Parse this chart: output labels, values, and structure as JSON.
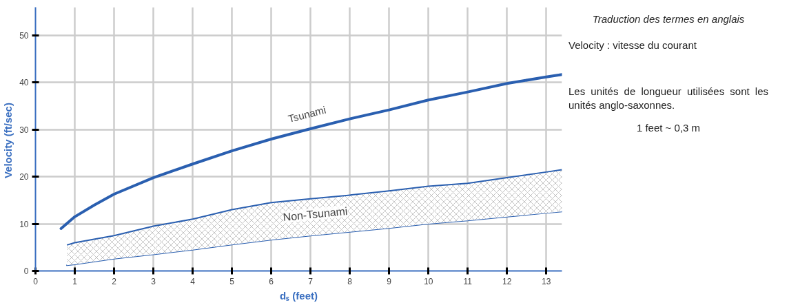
{
  "chart_data": {
    "type": "line",
    "xlabel": "dₛ (feet)",
    "ylabel": "Velocity  (ft/sec)",
    "xlim": [
      0,
      13.4
    ],
    "ylim": [
      0,
      56
    ],
    "xticks": [
      0,
      1,
      2,
      3,
      4,
      5,
      6,
      7,
      8,
      9,
      10,
      11,
      12,
      13
    ],
    "yticks": [
      0,
      10,
      20,
      30,
      40,
      50
    ],
    "grid": true,
    "series": [
      {
        "name": "Tsunami",
        "color": "#2a5fb0",
        "x": [
          0.65,
          1,
          1.5,
          2,
          3,
          4,
          5,
          6,
          7,
          8,
          9,
          10,
          11,
          12,
          13,
          13.4
        ],
        "values": [
          9,
          11.5,
          14,
          16.3,
          19.8,
          22.7,
          25.5,
          28,
          30.2,
          32.3,
          34.2,
          36.3,
          38,
          39.8,
          41.2,
          41.7
        ]
      },
      {
        "type": "line",
        "color": "#2a5fb0",
        "x": [
          0.8,
          1,
          2,
          3,
          4,
          5,
          6,
          7,
          8,
          9,
          10,
          11,
          12,
          13,
          13.4
        ],
        "values": [
          1.2,
          1.4,
          2.6,
          3.5,
          4.5,
          5.6,
          6.6,
          7.5,
          8.3,
          9.1,
          10,
          10.7,
          11.5,
          12.3,
          12.6
        ]
      },
      {
        "name": "Non-Tsunami",
        "type": "area",
        "color": "#2a5fb0",
        "x": [
          0.8,
          1,
          2,
          3,
          4,
          5,
          6,
          7,
          8,
          9,
          10,
          11,
          12,
          13,
          13.4
        ],
        "values": [
          5.5,
          6,
          7.5,
          9.5,
          11,
          13,
          14.5,
          15.3,
          16.1,
          17,
          18,
          18.6,
          19.8,
          21,
          21.5
        ]
      }
    ],
    "annotations": [
      "Traduction des termes en anglais",
      "Velocity : vitesse du courant",
      "Les unités de longueur utilisées sont les unités anglo-saxonnes.",
      "1 feet ~ 0,3 m"
    ]
  }
}
